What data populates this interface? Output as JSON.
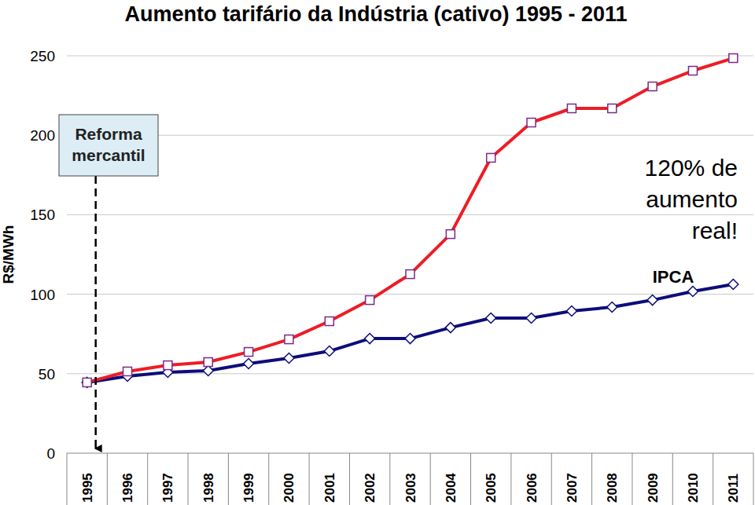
{
  "chart_data": {
    "type": "line",
    "title": "Aumento tarifário da Indústria (cativo) 1995 - 2011",
    "y_label": "R$/MWh",
    "categories": [
      "1995",
      "1996",
      "1997",
      "1998",
      "1999",
      "2000",
      "2001",
      "2002",
      "2003",
      "2004",
      "2005",
      "2006",
      "2007",
      "2008",
      "2009",
      "2010",
      "2011"
    ],
    "series": [
      {
        "color": "#ee1c25",
        "marker": "square",
        "values": [
          44.5,
          51.4,
          55.3,
          57.3,
          63.7,
          71.6,
          83,
          96.3,
          112.6,
          137.8,
          185.8,
          208,
          216.9,
          216.9,
          230.7,
          240.6,
          248.5
        ]
      },
      {
        "name": "IPCA",
        "color": "#0d0d7a",
        "marker": "diamond",
        "values": [
          44.5,
          48.4,
          50.9,
          51.9,
          56.3,
          59.8,
          64.2,
          72.1,
          72.1,
          79,
          85,
          85,
          89.4,
          91.9,
          96.3,
          101.8,
          106.2
        ]
      }
    ],
    "ylim": [
      0,
      250
    ],
    "yticks": [
      0,
      50,
      100,
      150,
      200,
      250
    ],
    "grid": true,
    "annotations": [
      {
        "lines": [
          "Reforma",
          "mercantil"
        ]
      },
      {
        "lines": [
          "120% de",
          "aumento",
          "real!"
        ]
      }
    ]
  }
}
